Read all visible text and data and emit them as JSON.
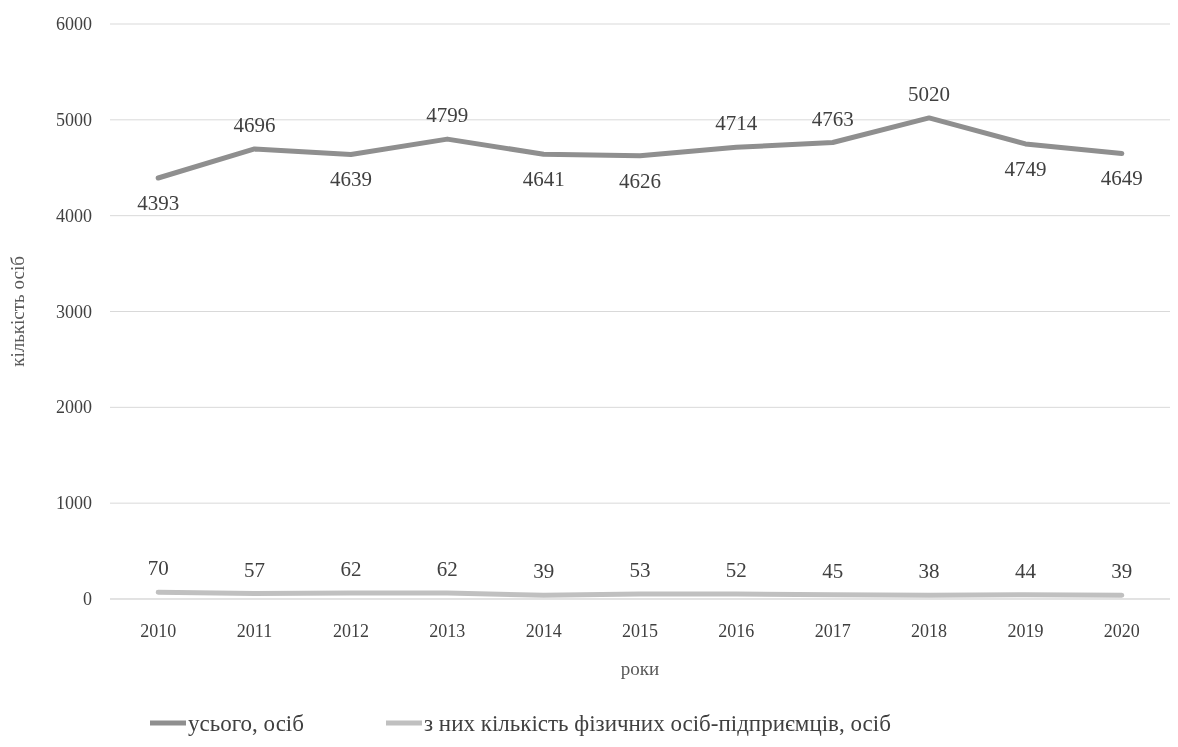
{
  "chart_data": {
    "type": "line",
    "xlabel": "роки",
    "ylabel": "кількість осіб",
    "categories": [
      "2010",
      "2011",
      "2012",
      "2013",
      "2014",
      "2015",
      "2016",
      "2017",
      "2018",
      "2019",
      "2020"
    ],
    "series": [
      {
        "name": "усього, осіб",
        "color": "#8f8f8f",
        "values": [
          4393,
          4696,
          4639,
          4799,
          4641,
          4626,
          4714,
          4763,
          5020,
          4749,
          4649
        ]
      },
      {
        "name": "з них кількість фізичних осіб-підприємців, осіб",
        "color": "#c0c0c0",
        "values": [
          70,
          57,
          62,
          62,
          39,
          53,
          52,
          45,
          38,
          44,
          39
        ]
      }
    ],
    "ylim": [
      0,
      6000
    ],
    "yticks": [
      0,
      1000,
      2000,
      3000,
      4000,
      5000,
      6000
    ],
    "grid": "y",
    "legend": "bottom",
    "data_labels": true,
    "marker": "none",
    "line_style": "solid"
  }
}
